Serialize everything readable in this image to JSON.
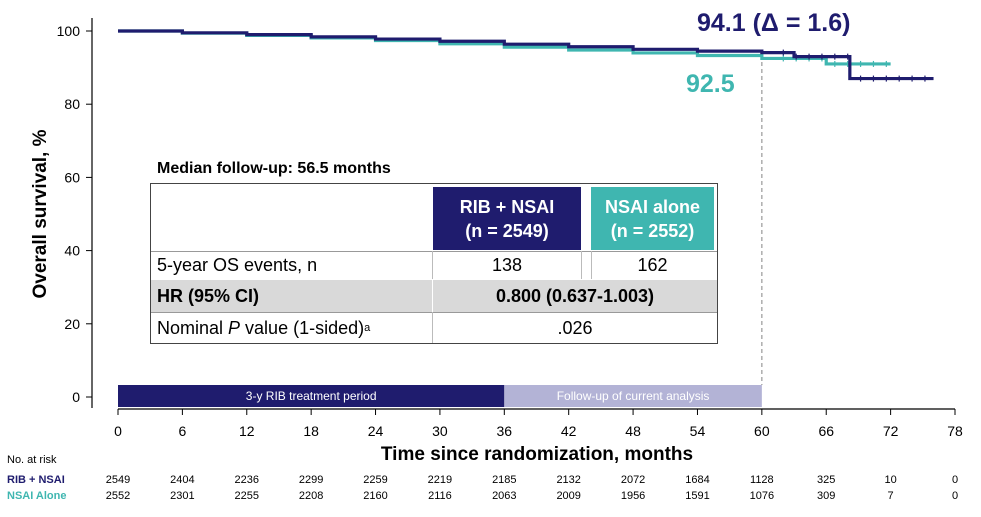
{
  "chart_data": {
    "type": "line",
    "subtype": "kaplan-meier",
    "ylabel": "Overall survival, %",
    "xlabel": "Time since randomization, months",
    "xlim": [
      0,
      78
    ],
    "ylim": [
      0,
      100
    ],
    "xticks": [
      "0",
      "6",
      "12",
      "18",
      "24",
      "30",
      "36",
      "42",
      "48",
      "54",
      "60",
      "66",
      "72",
      "78"
    ],
    "yticks": [
      "0",
      "20",
      "40",
      "60",
      "80",
      "100"
    ],
    "series": [
      {
        "name": "RIB + NSAI",
        "color": "#1f1c6e",
        "x": [
          0,
          6,
          12,
          18,
          24,
          30,
          36,
          42,
          48,
          54,
          60,
          63,
          68,
          68.2,
          69,
          72,
          76
        ],
        "y": [
          100,
          99.5,
          99.0,
          98.4,
          97.8,
          97.2,
          96.4,
          95.7,
          95.0,
          94.5,
          94.1,
          93.0,
          93.0,
          87.0,
          87.0,
          87.0,
          87.0
        ]
      },
      {
        "name": "NSAI alone",
        "color": "#3fb6b0",
        "x": [
          0,
          6,
          12,
          18,
          24,
          30,
          36,
          42,
          48,
          54,
          60,
          66,
          72
        ],
        "y": [
          100,
          99.4,
          98.8,
          98.1,
          97.4,
          96.5,
          95.6,
          94.8,
          94.0,
          93.3,
          92.5,
          91.0,
          91.0
        ]
      }
    ],
    "annotations": {
      "rib_label": "94.1 (Δ = 1.6)",
      "nsai_label": "92.5",
      "reference_line_x": 60
    },
    "treatment_band": {
      "period1_label": "3-y RIB treatment period",
      "period1_range": [
        0,
        36
      ],
      "period1_color": "#1f1c6e",
      "period2_label": "Follow-up of current analysis",
      "period2_range": [
        36,
        60
      ],
      "period2_color": "#b3b3d6"
    }
  },
  "inset": {
    "caption": "Median follow-up: 56.5 months",
    "col_rib_line1": "RIB + NSAI",
    "col_rib_line2": "(n = 2549)",
    "col_nsai_line1": "NSAI alone",
    "col_nsai_line2": "(n = 2552)",
    "row1_label": "5-year OS events, n",
    "row1_rib": "138",
    "row1_nsai": "162",
    "row2_label": "HR (95% CI)",
    "row2_value": "0.800 (0.637-1.003)",
    "row3_label_prefix": "Nominal ",
    "row3_label_p": "P",
    "row3_label_suffix": " value (1-sided)",
    "row3_label_sup": "a",
    "row3_value": ".026"
  },
  "at_risk": {
    "header": "No. at risk",
    "rows": [
      {
        "label": "RIB + NSAI",
        "values": [
          "2549",
          "2404",
          "2236",
          "2299",
          "2259",
          "2219",
          "2185",
          "2132",
          "2072",
          "1684",
          "1128",
          "325",
          "10",
          "0"
        ]
      },
      {
        "label": "NSAI Alone",
        "values": [
          "2552",
          "2301",
          "2255",
          "2208",
          "2160",
          "2116",
          "2063",
          "2009",
          "1956",
          "1591",
          "1076",
          "309",
          "7",
          "0"
        ]
      }
    ]
  }
}
